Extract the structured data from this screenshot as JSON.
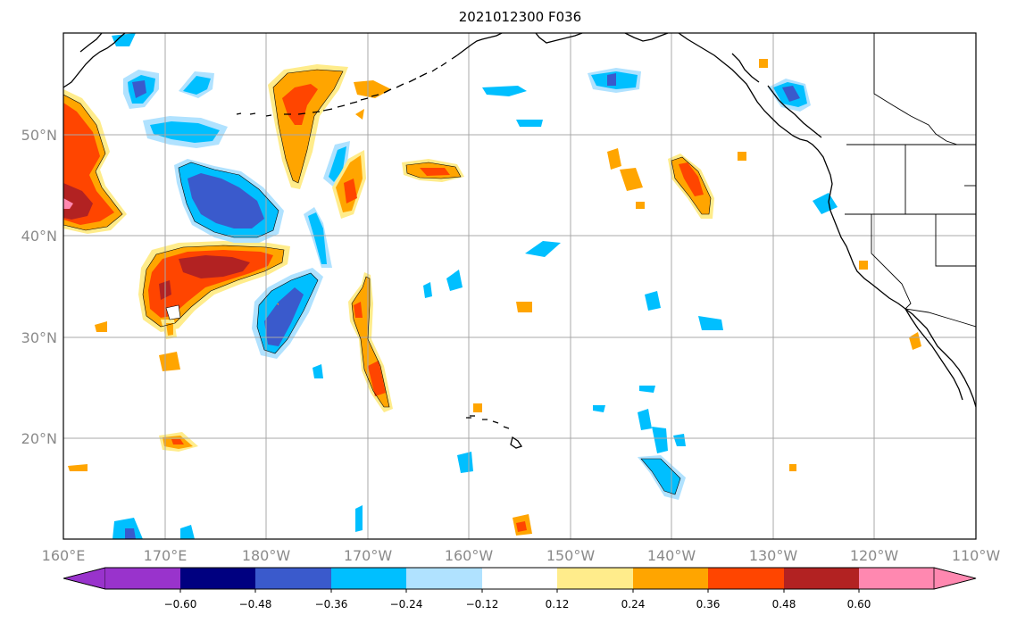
{
  "title": "2021012300 F036",
  "map": {
    "lon_labels": [
      "160°E",
      "170°E",
      "180°W",
      "170°W",
      "160°W",
      "150°W",
      "140°W",
      "130°W",
      "120°W",
      "110°W"
    ],
    "lat_labels": [
      "50°N",
      "40°N",
      "30°N",
      "20°N"
    ],
    "colors": {
      "c_neg_072": "#9933cc",
      "c_neg_060": "#000080",
      "c_neg_048": "#3a5acc",
      "c_neg_036": "#00bfff",
      "c_neg_024": "#b0e2ff",
      "c_pos_012": "#ffec8b",
      "c_pos_024": "#ffa500",
      "c_pos_036": "#ff4500",
      "c_pos_048": "#b22222",
      "c_pos_060": "#ff88b0"
    }
  },
  "colorbar": {
    "tick_labels": [
      "−0.60",
      "−0.48",
      "−0.36",
      "−0.24",
      "−0.12",
      "0.12",
      "0.24",
      "0.36",
      "0.48",
      "0.60"
    ],
    "colors": [
      "#9933cc",
      "#000080",
      "#3a5acc",
      "#00bfff",
      "#b0e2ff",
      "#ffffff",
      "#ffec8b",
      "#ffa500",
      "#ff4500",
      "#b22222",
      "#ff88b0"
    ]
  }
}
